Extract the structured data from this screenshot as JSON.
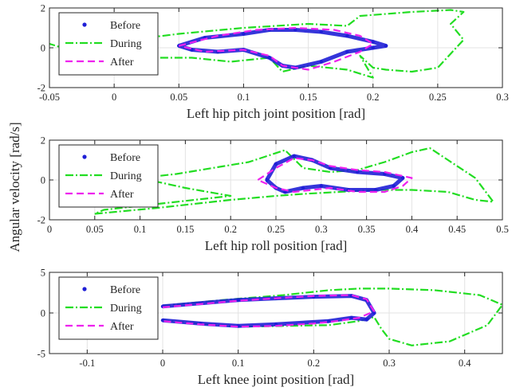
{
  "figure": {
    "ylabel": "Angular velocity [rad/s]"
  },
  "colors": {
    "before": "#1f1fd6",
    "during": "#22dd22",
    "after": "#ee22ee",
    "grid": "#e3e3e3",
    "axis": "#262626"
  },
  "legend": {
    "items": [
      {
        "key": "before",
        "label": "Before",
        "style": "dots"
      },
      {
        "key": "during",
        "label": "During",
        "style": "dash-dot"
      },
      {
        "key": "after",
        "label": "After",
        "style": "dashed"
      }
    ],
    "placement": "top-left"
  },
  "chart_data": [
    {
      "type": "line",
      "xlabel": "Left hip pitch joint position [rad]",
      "xlim": [
        -0.05,
        0.3
      ],
      "ylim": [
        -2,
        2
      ],
      "xticks": [
        -0.05,
        0,
        0.05,
        0.1,
        0.15,
        0.2,
        0.25,
        0.3
      ],
      "xtick_labels": [
        "-0.05",
        "0",
        "0.05",
        "0.1",
        "0.15",
        "0.2",
        "0.25",
        "0.3"
      ],
      "yticks": [
        -2,
        0,
        2
      ],
      "ytick_labels": [
        "-2",
        "0",
        "2"
      ],
      "grid": true,
      "series": [
        {
          "name": "Before",
          "key": "before",
          "style": "dots",
          "x": [
            0.05,
            0.07,
            0.1,
            0.12,
            0.14,
            0.16,
            0.18,
            0.2,
            0.21,
            0.2,
            0.18,
            0.16,
            0.14,
            0.13,
            0.12,
            0.1,
            0.08,
            0.06,
            0.05
          ],
          "y": [
            0.1,
            0.5,
            0.7,
            0.9,
            0.9,
            0.8,
            0.6,
            0.3,
            0.1,
            0.0,
            -0.2,
            -0.7,
            -1.0,
            -0.9,
            -0.5,
            -0.1,
            -0.2,
            -0.1,
            0.1
          ]
        },
        {
          "name": "During",
          "key": "during",
          "style": "dash-dot",
          "x": [
            -0.04,
            0.0,
            0.05,
            0.1,
            0.15,
            0.18,
            0.19,
            0.23,
            0.26,
            0.27,
            0.26,
            0.27,
            0.26,
            0.25,
            0.23,
            0.21,
            0.2,
            0.19,
            0.2,
            0.18,
            0.15,
            0.13,
            0.12,
            0.09,
            0.06,
            0.02,
            -0.02,
            -0.05
          ],
          "y": [
            0.2,
            0.3,
            0.7,
            1.0,
            1.2,
            1.1,
            1.6,
            1.8,
            1.9,
            1.8,
            1.2,
            0.4,
            -0.3,
            -1.0,
            -1.2,
            -1.1,
            -1.0,
            -0.4,
            -1.5,
            -1.1,
            -0.9,
            -1.2,
            -0.5,
            -0.7,
            -0.5,
            -0.5,
            -0.4,
            0.2
          ]
        },
        {
          "name": "After",
          "key": "after",
          "style": "dashed",
          "x": [
            0.05,
            0.08,
            0.11,
            0.14,
            0.17,
            0.19,
            0.2,
            0.19,
            0.17,
            0.15,
            0.13,
            0.12,
            0.1,
            0.07,
            0.05
          ],
          "y": [
            0.1,
            0.6,
            0.9,
            1.0,
            0.9,
            0.6,
            0.2,
            -0.2,
            -0.7,
            -1.1,
            -0.9,
            -0.4,
            -0.1,
            -0.2,
            0.1
          ]
        }
      ]
    },
    {
      "type": "line",
      "xlabel": "Left hip roll position [rad]",
      "xlim": [
        0,
        0.5
      ],
      "ylim": [
        -2,
        2
      ],
      "xticks": [
        0,
        0.05,
        0.1,
        0.15,
        0.2,
        0.25,
        0.3,
        0.35,
        0.4,
        0.45,
        0.5
      ],
      "xtick_labels": [
        "0",
        "0.05",
        "0.1",
        "0.15",
        "0.2",
        "0.25",
        "0.3",
        "0.35",
        "0.4",
        "0.45",
        "0.5"
      ],
      "yticks": [
        -2,
        0,
        2
      ],
      "ytick_labels": [
        "-2",
        "0",
        "2"
      ],
      "grid": true,
      "series": [
        {
          "name": "Before",
          "key": "before",
          "style": "dots",
          "x": [
            0.24,
            0.25,
            0.27,
            0.29,
            0.31,
            0.34,
            0.37,
            0.39,
            0.38,
            0.36,
            0.33,
            0.3,
            0.28,
            0.26,
            0.25,
            0.24
          ],
          "y": [
            0.0,
            0.8,
            1.2,
            1.0,
            0.6,
            0.4,
            0.3,
            0.1,
            -0.3,
            -0.5,
            -0.5,
            -0.3,
            -0.4,
            -0.6,
            -0.4,
            0.0
          ]
        },
        {
          "name": "During",
          "key": "during",
          "style": "dash-dot",
          "x": [
            0.05,
            0.12,
            0.2,
            0.25,
            0.28,
            0.32,
            0.36,
            0.4,
            0.44,
            0.47,
            0.49,
            0.47,
            0.44,
            0.42,
            0.4,
            0.37,
            0.34,
            0.31,
            0.28,
            0.26,
            0.22,
            0.18,
            0.14,
            0.1,
            0.15,
            0.2,
            0.12,
            0.06,
            0.05
          ],
          "y": [
            -1.7,
            -1.4,
            -1.0,
            -0.8,
            -0.7,
            -0.6,
            -0.5,
            -0.5,
            -0.6,
            -1.0,
            -1.1,
            0.1,
            1.0,
            1.6,
            1.4,
            0.9,
            0.5,
            0.4,
            0.6,
            1.5,
            0.9,
            0.6,
            0.3,
            0.1,
            -0.4,
            -0.8,
            -1.2,
            -1.5,
            -1.7
          ]
        },
        {
          "name": "After",
          "key": "after",
          "style": "dashed",
          "x": [
            0.23,
            0.25,
            0.27,
            0.29,
            0.31,
            0.34,
            0.37,
            0.4,
            0.39,
            0.37,
            0.34,
            0.31,
            0.29,
            0.27,
            0.25,
            0.23
          ],
          "y": [
            0.0,
            0.6,
            1.1,
            1.0,
            0.7,
            0.5,
            0.4,
            0.1,
            -0.3,
            -0.6,
            -0.6,
            -0.4,
            -0.5,
            -0.6,
            -0.4,
            0.0
          ]
        }
      ]
    },
    {
      "type": "line",
      "xlabel": "Left knee joint position [rad]",
      "xlim": [
        -0.15,
        0.45
      ],
      "ylim": [
        -5,
        5
      ],
      "xticks": [
        -0.1,
        0,
        0.1,
        0.2,
        0.3,
        0.4
      ],
      "xtick_labels": [
        "-0.1",
        "0",
        "0.1",
        "0.2",
        "0.3",
        "0.4"
      ],
      "yticks": [
        -5,
        0,
        5
      ],
      "ytick_labels": [
        "-5",
        "0",
        "5"
      ],
      "grid": true,
      "series": [
        {
          "name": "Before",
          "key": "before",
          "style": "dots",
          "x": [
            0.0,
            0.05,
            0.1,
            0.15,
            0.2,
            0.25,
            0.27,
            0.28,
            0.27,
            0.25,
            0.22,
            0.15,
            0.1,
            0.05,
            0.0
          ],
          "y": [
            0.8,
            1.2,
            1.6,
            1.8,
            2.0,
            2.1,
            1.6,
            0.0,
            -0.8,
            -0.6,
            -1.0,
            -1.4,
            -1.6,
            -1.3,
            -0.9
          ]
        },
        {
          "name": "During",
          "key": "during",
          "style": "dash-dot",
          "x": [
            0.0,
            0.08,
            0.16,
            0.22,
            0.26,
            0.3,
            0.36,
            0.42,
            0.45,
            0.43,
            0.38,
            0.33,
            0.3,
            0.29,
            0.28,
            0.26,
            0.22,
            0.16,
            0.1,
            0.05,
            0.0
          ],
          "y": [
            0.9,
            1.6,
            2.2,
            2.8,
            3.0,
            3.0,
            2.8,
            2.2,
            1.0,
            -1.5,
            -3.5,
            -4.0,
            -3.2,
            -2.0,
            -0.5,
            -1.0,
            -1.5,
            -1.6,
            -1.7,
            -1.3,
            -0.9
          ]
        },
        {
          "name": "After",
          "key": "after",
          "style": "dashed",
          "x": [
            0.0,
            0.05,
            0.1,
            0.15,
            0.2,
            0.25,
            0.27,
            0.28,
            0.26,
            0.23,
            0.2,
            0.15,
            0.1,
            0.05,
            0.0
          ],
          "y": [
            0.7,
            1.1,
            1.5,
            1.8,
            2.1,
            2.2,
            1.7,
            0.2,
            -0.6,
            -1.0,
            -1.3,
            -1.6,
            -1.7,
            -1.4,
            -1.0
          ]
        }
      ]
    }
  ]
}
